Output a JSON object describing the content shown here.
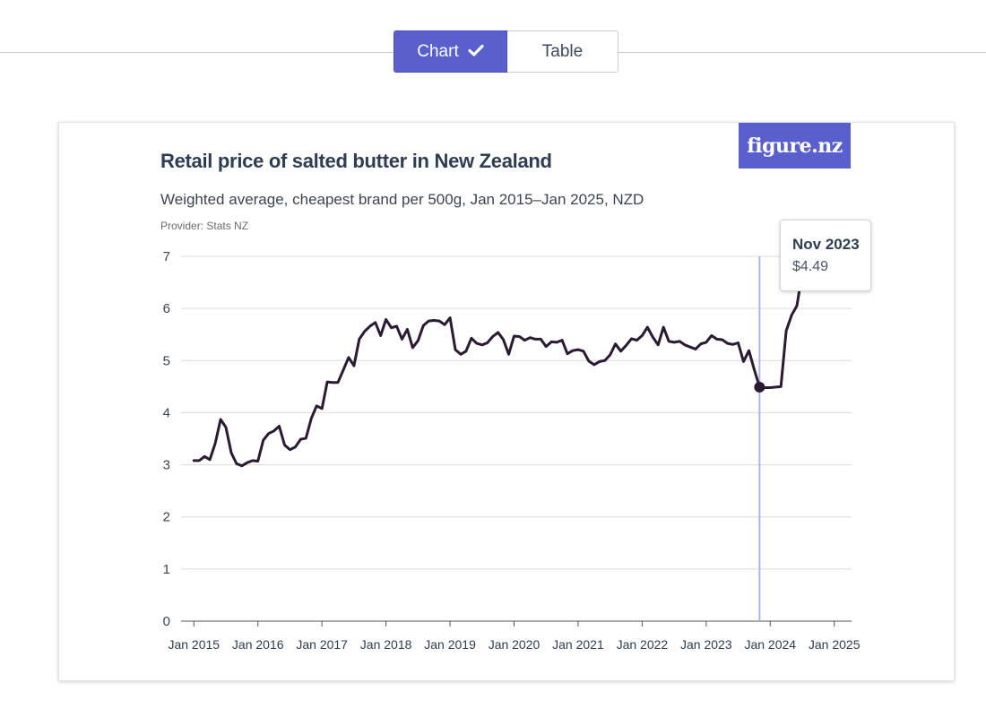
{
  "view_toggle": {
    "chart_label": "Chart",
    "table_label": "Table",
    "active": "Chart"
  },
  "logo_text": "figure.nz",
  "colors": {
    "accent": "#5a5fce",
    "line": "#2a1a33",
    "hover_line": "#aab4f5",
    "grid": "#dcdcdc",
    "title": "#2f3d52"
  },
  "tooltip": {
    "date": "Nov 2023",
    "value": "$4.49"
  },
  "chart_data": {
    "type": "line",
    "title": "Retail price of salted butter in New Zealand",
    "subtitle": "Weighted average, cheapest brand per 500g, Jan 2015–Jan 2025, NZD",
    "provider": "Provider: Stats NZ",
    "xlabel": "",
    "ylabel": "",
    "ylim": [
      0,
      7
    ],
    "yticks": [
      0,
      1,
      2,
      3,
      4,
      5,
      6,
      7
    ],
    "xticks": [
      {
        "label": "Jan 2015",
        "t": 2015.0
      },
      {
        "label": "Jan 2016",
        "t": 2016.0
      },
      {
        "label": "Jan 2017",
        "t": 2017.0
      },
      {
        "label": "Jan 2018",
        "t": 2018.0
      },
      {
        "label": "Jan 2019",
        "t": 2019.0
      },
      {
        "label": "Jan 2020",
        "t": 2020.0
      },
      {
        "label": "Jan 2021",
        "t": 2021.0
      },
      {
        "label": "Jan 2022",
        "t": 2022.0
      },
      {
        "label": "Jan 2023",
        "t": 2023.0
      },
      {
        "label": "Jan 2024",
        "t": 2024.0
      },
      {
        "label": "Jan 2025",
        "t": 2025.0
      }
    ],
    "grid": true,
    "highlight": {
      "t": 2023.8333,
      "value": 4.49
    },
    "series": [
      {
        "points": [
          [
            2015.0,
            3.08
          ],
          [
            2015.0833,
            3.08
          ],
          [
            2015.1667,
            3.16
          ],
          [
            2015.25,
            3.1
          ],
          [
            2015.3333,
            3.41
          ],
          [
            2015.4167,
            3.87
          ],
          [
            2015.5,
            3.72
          ],
          [
            2015.5833,
            3.23
          ],
          [
            2015.6667,
            3.02
          ],
          [
            2015.75,
            2.98
          ],
          [
            2015.8333,
            3.04
          ],
          [
            2015.9167,
            3.08
          ],
          [
            2016.0,
            3.07
          ],
          [
            2016.0833,
            3.47
          ],
          [
            2016.1667,
            3.6
          ],
          [
            2016.25,
            3.65
          ],
          [
            2016.3333,
            3.74
          ],
          [
            2016.4167,
            3.38
          ],
          [
            2016.5,
            3.29
          ],
          [
            2016.5833,
            3.34
          ],
          [
            2016.6667,
            3.49
          ],
          [
            2016.75,
            3.51
          ],
          [
            2016.8333,
            3.89
          ],
          [
            2016.9167,
            4.13
          ],
          [
            2017.0,
            4.08
          ],
          [
            2017.0833,
            4.59
          ],
          [
            2017.1667,
            4.58
          ],
          [
            2017.25,
            4.58
          ],
          [
            2017.3333,
            4.82
          ],
          [
            2017.4167,
            5.06
          ],
          [
            2017.5,
            4.9
          ],
          [
            2017.5833,
            5.41
          ],
          [
            2017.6667,
            5.56
          ],
          [
            2017.75,
            5.66
          ],
          [
            2017.8333,
            5.73
          ],
          [
            2017.9167,
            5.48
          ],
          [
            2018.0,
            5.79
          ],
          [
            2018.0833,
            5.63
          ],
          [
            2018.1667,
            5.66
          ],
          [
            2018.25,
            5.41
          ],
          [
            2018.3333,
            5.6
          ],
          [
            2018.4167,
            5.25
          ],
          [
            2018.5,
            5.38
          ],
          [
            2018.5833,
            5.67
          ],
          [
            2018.6667,
            5.76
          ],
          [
            2018.75,
            5.77
          ],
          [
            2018.8333,
            5.76
          ],
          [
            2018.9167,
            5.69
          ],
          [
            2019.0,
            5.82
          ],
          [
            2019.0833,
            5.21
          ],
          [
            2019.1667,
            5.12
          ],
          [
            2019.25,
            5.18
          ],
          [
            2019.3333,
            5.43
          ],
          [
            2019.4167,
            5.33
          ],
          [
            2019.5,
            5.3
          ],
          [
            2019.5833,
            5.34
          ],
          [
            2019.6667,
            5.46
          ],
          [
            2019.75,
            5.54
          ],
          [
            2019.8333,
            5.4
          ],
          [
            2019.9167,
            5.12
          ],
          [
            2020.0,
            5.47
          ],
          [
            2020.0833,
            5.46
          ],
          [
            2020.1667,
            5.39
          ],
          [
            2020.25,
            5.44
          ],
          [
            2020.3333,
            5.41
          ],
          [
            2020.4167,
            5.41
          ],
          [
            2020.5,
            5.27
          ],
          [
            2020.5833,
            5.36
          ],
          [
            2020.6667,
            5.35
          ],
          [
            2020.75,
            5.39
          ],
          [
            2020.8333,
            5.13
          ],
          [
            2020.9167,
            5.19
          ],
          [
            2021.0,
            5.21
          ],
          [
            2021.0833,
            5.18
          ],
          [
            2021.1667,
            4.99
          ],
          [
            2021.25,
            4.92
          ],
          [
            2021.3333,
            4.98
          ],
          [
            2021.4167,
            5.0
          ],
          [
            2021.5,
            5.11
          ],
          [
            2021.5833,
            5.32
          ],
          [
            2021.6667,
            5.18
          ],
          [
            2021.75,
            5.29
          ],
          [
            2021.8333,
            5.42
          ],
          [
            2021.9167,
            5.39
          ],
          [
            2022.0,
            5.48
          ],
          [
            2022.0833,
            5.64
          ],
          [
            2022.1667,
            5.45
          ],
          [
            2022.25,
            5.3
          ],
          [
            2022.3333,
            5.64
          ],
          [
            2022.4167,
            5.37
          ],
          [
            2022.5,
            5.35
          ],
          [
            2022.5833,
            5.37
          ],
          [
            2022.6667,
            5.3
          ],
          [
            2022.75,
            5.26
          ],
          [
            2022.8333,
            5.22
          ],
          [
            2022.9167,
            5.32
          ],
          [
            2023.0,
            5.35
          ],
          [
            2023.0833,
            5.48
          ],
          [
            2023.1667,
            5.41
          ],
          [
            2023.25,
            5.4
          ],
          [
            2023.3333,
            5.33
          ],
          [
            2023.4167,
            5.31
          ],
          [
            2023.5,
            5.34
          ],
          [
            2023.5833,
            4.98
          ],
          [
            2023.6667,
            5.19
          ],
          [
            2023.75,
            4.83
          ],
          [
            2023.8333,
            4.49
          ],
          [
            2023.9167,
            4.48
          ],
          [
            2024.0,
            4.48
          ],
          [
            2024.0833,
            4.49
          ],
          [
            2024.1667,
            4.5
          ],
          [
            2024.25,
            5.57
          ],
          [
            2024.3333,
            5.87
          ],
          [
            2024.4167,
            6.05
          ],
          [
            2024.5,
            6.68
          ],
          [
            2024.5833,
            7.0
          ]
        ]
      }
    ]
  }
}
